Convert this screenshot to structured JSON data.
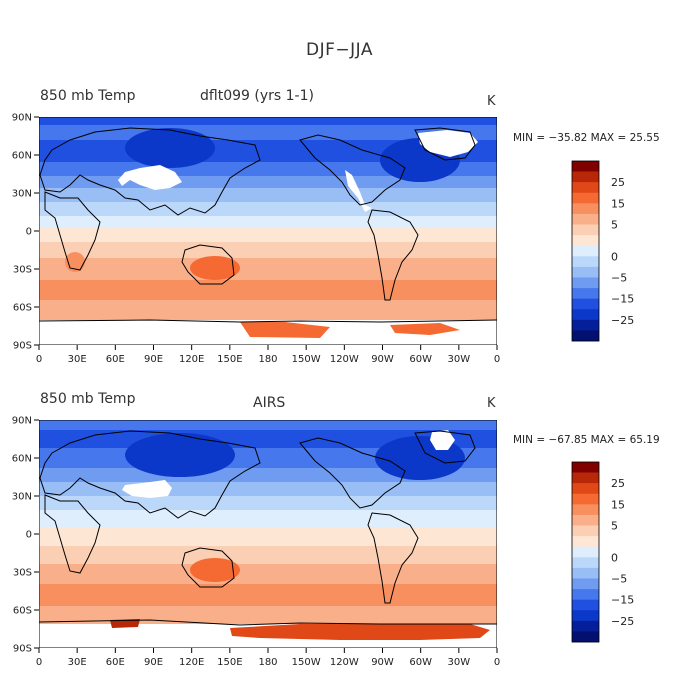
{
  "title": "DJF−JJA",
  "units": "K",
  "x_ticks": [
    "0",
    "30E",
    "60E",
    "90E",
    "120E",
    "150E",
    "180",
    "150W",
    "120W",
    "90W",
    "60W",
    "30W",
    "0"
  ],
  "y_ticks": [
    "90N",
    "60N",
    "30N",
    "0",
    "30S",
    "60S",
    "90S"
  ],
  "colorbar": {
    "labels": [
      "25",
      "15",
      "5",
      "0",
      "−5",
      "−15",
      "−25"
    ],
    "colors": [
      "#800000",
      "#b82808",
      "#e04818",
      "#f56a32",
      "#f7905e",
      "#f9b08a",
      "#fbcfb3",
      "#fde6d4",
      "#deeefd",
      "#bbd8fa",
      "#99bdf5",
      "#6f9cf0",
      "#4677ec",
      "#2050e0",
      "#0c38c9",
      "#051f9a",
      "#021170"
    ]
  },
  "panels": [
    {
      "variable": "850 mb Temp",
      "source": "dflt099 (yrs 1-1)",
      "units": "K",
      "stats": "MIN = −35.82  MAX =  25.55"
    },
    {
      "variable": "850 mb Temp",
      "source": "AIRS",
      "units": "K",
      "stats": "MIN = −67.85  MAX =  65.19"
    }
  ]
}
